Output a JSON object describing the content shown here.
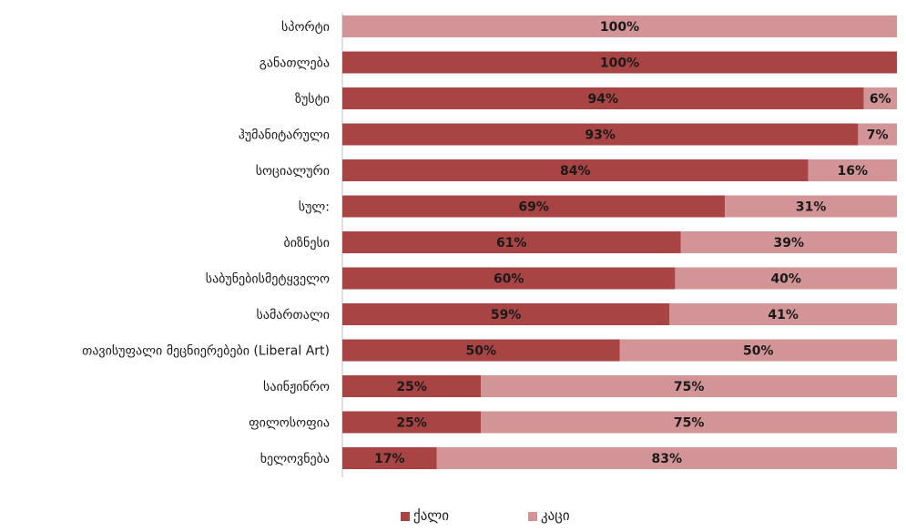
{
  "chart_data": {
    "type": "bar",
    "orientation": "horizontal",
    "stacked": true,
    "percent_stacked": true,
    "categories": [
      "სპორტი",
      "განათლება",
      "ზუსტი",
      "ჰუმანიტარული",
      "სოციალური",
      "სულ:",
      "ბიზნესი",
      "საბუნებისმეტყველო",
      "სამართალი",
      "თავისუფალი მეცნიერებები (Liberal Art)",
      "საინჟინრო",
      "ფილოსოფია",
      "ხელოვნება"
    ],
    "series": [
      {
        "name": "ქალი",
        "color": "#a94444",
        "values": [
          0,
          100,
          94,
          93,
          84,
          69,
          61,
          60,
          59,
          50,
          25,
          25,
          17
        ],
        "labels": [
          "",
          "100%",
          "94%",
          "93%",
          "84%",
          "69%",
          "61%",
          "60%",
          "59%",
          "50%",
          "25%",
          "25%",
          "17%"
        ]
      },
      {
        "name": "კაცი",
        "color": "#d29496",
        "values": [
          100,
          0,
          6,
          7,
          16,
          31,
          39,
          40,
          41,
          50,
          75,
          75,
          83
        ],
        "labels": [
          "100%",
          "",
          "6%",
          "7%",
          "16%",
          "31%",
          "39%",
          "40%",
          "41%",
          "50%",
          "75%",
          "75%",
          "83%"
        ]
      }
    ],
    "xlim": [
      0,
      100
    ],
    "grid": false,
    "legend_position": "bottom"
  }
}
